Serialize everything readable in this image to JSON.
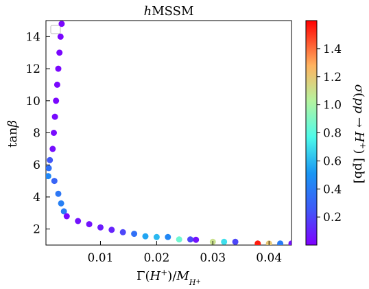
{
  "chart_data": {
    "type": "scatter",
    "title": "hMSSM",
    "title_italic_prefix": "h",
    "xlabel": "Γ(H⁺)/M_{H⁺}",
    "ylabel": "tanβ",
    "xlim": [
      0.0003,
      0.044
    ],
    "ylim": [
      1.0,
      15.0
    ],
    "x_ticks": [
      0.01,
      0.02,
      0.03,
      0.04
    ],
    "x_tick_labels": [
      "0.01",
      "0.02",
      "0.03",
      "0.04"
    ],
    "y_ticks": [
      2,
      4,
      6,
      8,
      10,
      12,
      14
    ],
    "y_tick_labels": [
      "2",
      "4",
      "6",
      "8",
      "10",
      "12",
      "14"
    ],
    "legend_placement": "upper-left (empty)",
    "colorbar": {
      "label": "σ(pp → H⁺) [pb]",
      "range": [
        0.0,
        1.6
      ],
      "ticks": [
        0.2,
        0.4,
        0.6,
        0.8,
        1.0,
        1.2,
        1.4
      ],
      "tick_labels": [
        "0.2",
        "0.4",
        "0.6",
        "0.8",
        "1.0",
        "1.2",
        "1.4"
      ],
      "colormap": "rainbow"
    },
    "points": [
      {
        "x": 0.0031,
        "y": 14.8,
        "c": 0.02
      },
      {
        "x": 0.0029,
        "y": 14.0,
        "c": 0.02
      },
      {
        "x": 0.0027,
        "y": 13.0,
        "c": 0.02
      },
      {
        "x": 0.0025,
        "y": 12.0,
        "c": 0.02
      },
      {
        "x": 0.0023,
        "y": 11.0,
        "c": 0.02
      },
      {
        "x": 0.0021,
        "y": 10.0,
        "c": 0.02
      },
      {
        "x": 0.0019,
        "y": 9.0,
        "c": 0.03
      },
      {
        "x": 0.0017,
        "y": 8.0,
        "c": 0.03
      },
      {
        "x": 0.0015,
        "y": 7.0,
        "c": 0.04
      },
      {
        "x": 0.001,
        "y": 6.3,
        "c": 0.25
      },
      {
        "x": 0.0008,
        "y": 5.8,
        "c": 0.35
      },
      {
        "x": 0.0007,
        "y": 5.3,
        "c": 0.45
      },
      {
        "x": 0.0018,
        "y": 5.0,
        "c": 0.3
      },
      {
        "x": 0.0025,
        "y": 4.2,
        "c": 0.38
      },
      {
        "x": 0.003,
        "y": 3.6,
        "c": 0.42
      },
      {
        "x": 0.0035,
        "y": 3.1,
        "c": 0.4
      },
      {
        "x": 0.004,
        "y": 2.8,
        "c": 0.02
      },
      {
        "x": 0.006,
        "y": 2.5,
        "c": 0.05
      },
      {
        "x": 0.008,
        "y": 2.3,
        "c": 0.05
      },
      {
        "x": 0.01,
        "y": 2.1,
        "c": 0.08
      },
      {
        "x": 0.012,
        "y": 1.95,
        "c": 0.1
      },
      {
        "x": 0.014,
        "y": 1.8,
        "c": 0.2
      },
      {
        "x": 0.016,
        "y": 1.7,
        "c": 0.35
      },
      {
        "x": 0.018,
        "y": 1.55,
        "c": 0.55
      },
      {
        "x": 0.02,
        "y": 1.5,
        "c": 0.6
      },
      {
        "x": 0.022,
        "y": 1.5,
        "c": 0.45
      },
      {
        "x": 0.024,
        "y": 1.35,
        "c": 0.85
      },
      {
        "x": 0.026,
        "y": 1.35,
        "c": 0.2
      },
      {
        "x": 0.027,
        "y": 1.33,
        "c": 0.05
      },
      {
        "x": 0.03,
        "y": 1.2,
        "c": 1.1
      },
      {
        "x": 0.032,
        "y": 1.2,
        "c": 0.7
      },
      {
        "x": 0.034,
        "y": 1.2,
        "c": 0.2
      },
      {
        "x": 0.038,
        "y": 1.1,
        "c": 1.55
      },
      {
        "x": 0.04,
        "y": 1.1,
        "c": 1.2
      },
      {
        "x": 0.042,
        "y": 1.1,
        "c": 0.4
      },
      {
        "x": 0.044,
        "y": 1.1,
        "c": 0.05
      }
    ]
  }
}
